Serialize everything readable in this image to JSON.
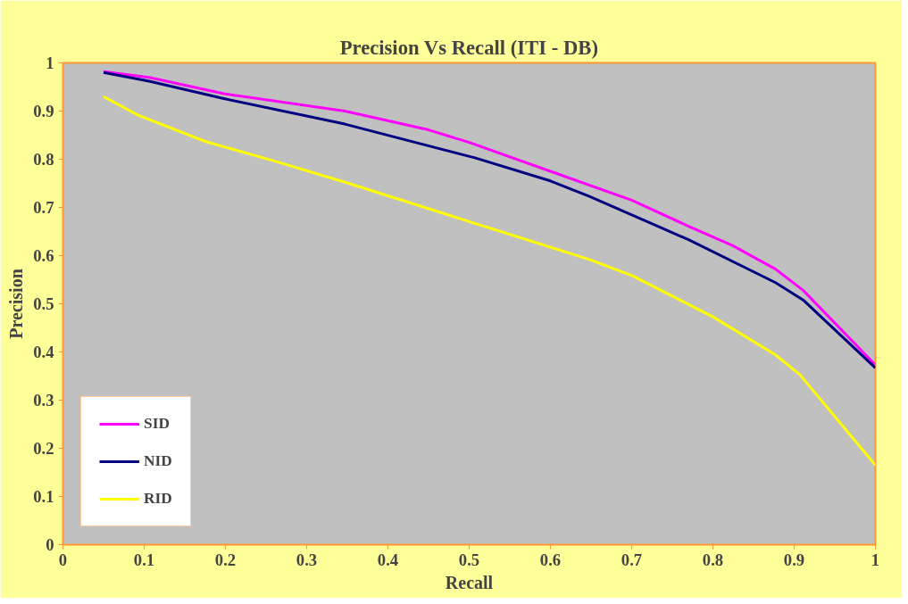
{
  "chart_data": {
    "type": "line",
    "title": "Precision Vs Recall (ITI - DB)",
    "xlabel": "Recall",
    "ylabel": "Precision",
    "xlim": [
      0,
      1
    ],
    "ylim": [
      0,
      1
    ],
    "xticks": [
      0,
      0.1,
      0.2,
      0.3,
      0.4,
      0.5,
      0.6,
      0.7,
      0.8,
      0.9,
      1
    ],
    "yticks": [
      0,
      0.1,
      0.2,
      0.3,
      0.4,
      0.5,
      0.6,
      0.7,
      0.8,
      0.9,
      1
    ],
    "grid": false,
    "legend": "bottom left",
    "marker": "none",
    "line_style": "solid",
    "series": [
      {
        "name": "SID",
        "color": "#ff00ff",
        "x": [
          0.05,
          0.106,
          0.198,
          0.347,
          0.45,
          0.5,
          0.6,
          0.7,
          0.77,
          0.824,
          0.877,
          0.911,
          1.0
        ],
        "values": [
          0.982,
          0.97,
          0.936,
          0.9,
          0.861,
          0.835,
          0.775,
          0.715,
          0.661,
          0.621,
          0.572,
          0.528,
          0.373
        ]
      },
      {
        "name": "NID",
        "color": "#000080",
        "x": [
          0.05,
          0.106,
          0.198,
          0.347,
          0.507,
          0.6,
          0.648,
          0.77,
          0.877,
          0.911,
          1.0
        ],
        "values": [
          0.98,
          0.962,
          0.926,
          0.873,
          0.803,
          0.755,
          0.723,
          0.633,
          0.544,
          0.508,
          0.367
        ]
      },
      {
        "name": "RID",
        "color": "#ffff00",
        "x": [
          0.05,
          0.092,
          0.175,
          0.259,
          0.35,
          0.507,
          0.648,
          0.701,
          0.801,
          0.877,
          0.907,
          1.0
        ],
        "values": [
          0.93,
          0.892,
          0.837,
          0.797,
          0.751,
          0.667,
          0.592,
          0.558,
          0.472,
          0.394,
          0.353,
          0.165
        ]
      }
    ]
  }
}
